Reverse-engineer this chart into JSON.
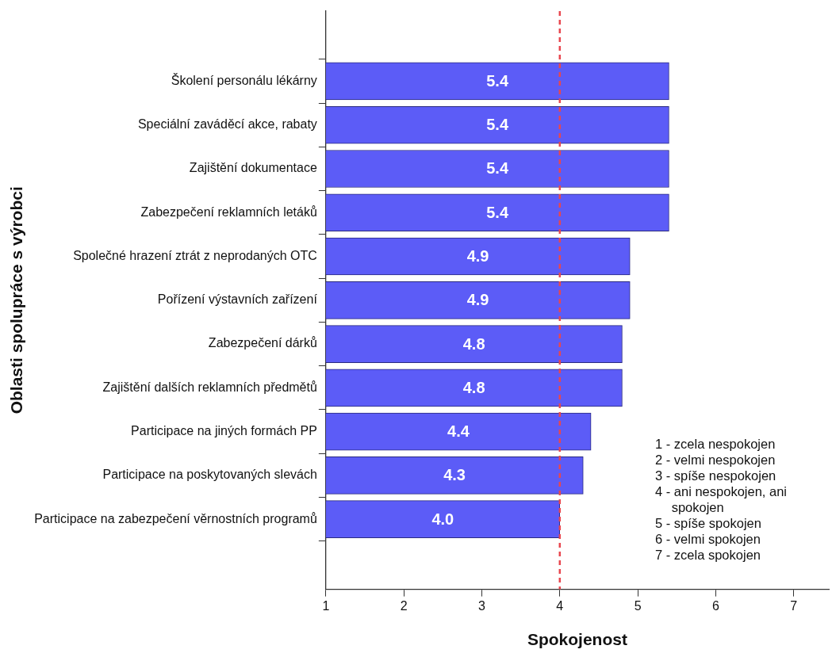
{
  "chart_data": {
    "type": "bar",
    "orientation": "horizontal",
    "xlabel": "Spokojenost",
    "ylabel": "Oblasti spolupráce s výrobci",
    "categories": [
      "Školení personálu lékárny",
      "Speciální zaváděcí akce, rabaty",
      "Zajištění dokumentace",
      "Zabezpečení reklamních letáků",
      "Společné hrazení ztrát z neprodaných OTC",
      "Pořízení výstavních zařízení",
      "Zabezpečení dárků",
      "Zajištění dalších reklamních předmětů",
      "Participace na jiných formách PP",
      "Participace na poskytovaných slevách",
      "Participace na zabezpečení věrnostních programů"
    ],
    "values": [
      5.4,
      5.4,
      5.4,
      5.4,
      4.9,
      4.9,
      4.8,
      4.8,
      4.4,
      4.3,
      4.0
    ],
    "color": "#5c5cf7",
    "value_labels": [
      "5.4",
      "5.4",
      "5.4",
      "5.4",
      "4.9",
      "4.9",
      "4.8",
      "4.8",
      "4.4",
      "4.3",
      "4.0"
    ],
    "xlim": [
      1,
      7.45
    ],
    "xticks": [
      1,
      2,
      3,
      4,
      5,
      6,
      7
    ],
    "grid": false,
    "legend": false,
    "ref_lines": [
      {
        "axis": "x",
        "value": 4,
        "color": "#e8474f",
        "line_style": "dashed"
      }
    ],
    "annotations": [
      "1 - zcela nespokojen",
      "2 - velmi nespokojen",
      "3 - spíše nespokojen",
      "4 - ani nespokojen, ani spokojen",
      "5 - spíše spokojen",
      "6 - velmi spokojen",
      "7 - zcela spokojen"
    ]
  }
}
